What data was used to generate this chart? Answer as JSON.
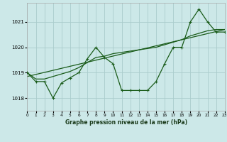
{
  "title": "Graphe pression niveau de la mer (hPa)",
  "bg_color": "#cce8e8",
  "grid_color": "#aacccc",
  "line_color": "#1a5c1a",
  "x_min": 0,
  "x_max": 23,
  "y_min": 1017.5,
  "y_max": 1021.75,
  "yticks": [
    1018,
    1019,
    1020,
    1021
  ],
  "xticks": [
    0,
    1,
    2,
    3,
    4,
    5,
    6,
    7,
    8,
    9,
    10,
    11,
    12,
    13,
    14,
    15,
    16,
    17,
    18,
    19,
    20,
    21,
    22,
    23
  ],
  "series_trend": {
    "x": [
      0,
      23
    ],
    "y": [
      1018.85,
      1020.7
    ]
  },
  "series_smooth": {
    "x": [
      0,
      1,
      2,
      3,
      4,
      5,
      6,
      7,
      8,
      9,
      10,
      11,
      12,
      13,
      14,
      15,
      16,
      17,
      18,
      19,
      20,
      21,
      22,
      23
    ],
    "y": [
      1019.0,
      1018.75,
      1018.75,
      1018.85,
      1018.95,
      1019.05,
      1019.2,
      1019.4,
      1019.6,
      1019.65,
      1019.75,
      1019.8,
      1019.85,
      1019.9,
      1019.95,
      1020.0,
      1020.1,
      1020.2,
      1020.3,
      1020.45,
      1020.55,
      1020.65,
      1020.7,
      1020.7
    ]
  },
  "series_main": {
    "x": [
      0,
      1,
      2,
      3,
      4,
      5,
      6,
      7,
      8,
      9,
      10,
      11,
      12,
      13,
      14,
      15,
      16,
      17,
      18,
      19,
      20,
      21,
      22,
      23
    ],
    "y": [
      1019.0,
      1018.65,
      1018.65,
      1018.0,
      1018.6,
      1018.8,
      1019.0,
      1019.55,
      1020.0,
      1019.6,
      1019.35,
      1018.3,
      1018.3,
      1018.3,
      1018.3,
      1018.65,
      1019.35,
      1020.0,
      1020.0,
      1021.0,
      1021.5,
      1021.0,
      1020.6,
      1020.6
    ]
  }
}
